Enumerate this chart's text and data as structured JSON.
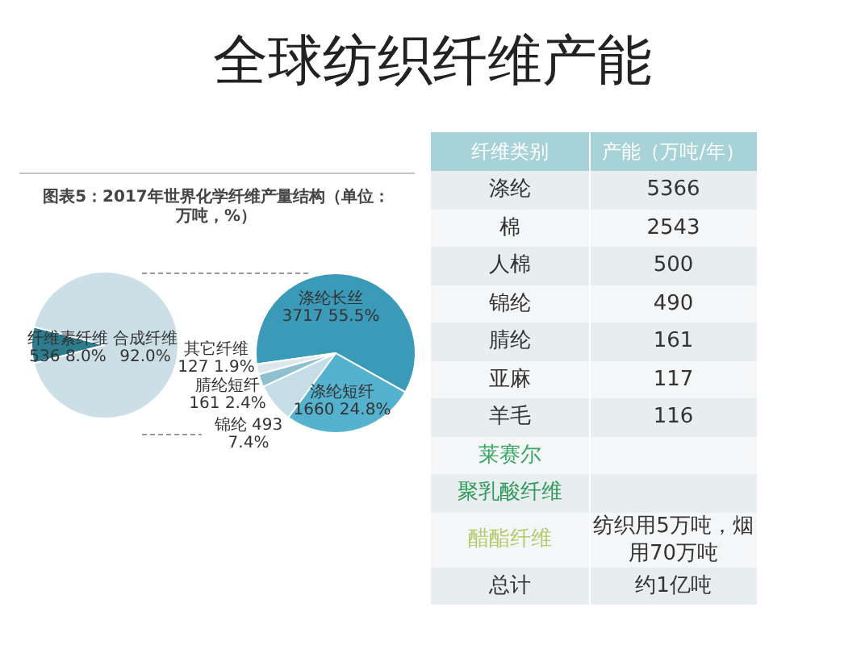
{
  "chart_data": [
    {
      "type": "pie",
      "title": "图表5：2017年世界化学纤维产量结构（单位：万吨，%）",
      "categories": [
        "纤维素纤维",
        "合成纤维"
      ],
      "values": [
        8.0,
        92.0
      ],
      "value_labels": [
        "536 8.0%",
        "92.0%"
      ],
      "colors": [
        "#2d7d8e",
        "#cddfe6"
      ]
    },
    {
      "type": "pie",
      "categories": [
        "涤纶长丝",
        "涤纶短纤",
        "锦纶",
        "腈纶短纤",
        "其它纤维"
      ],
      "values": [
        3717,
        1660,
        493,
        161,
        127
      ],
      "value_labels": [
        "3717 55.5%",
        "1660 24.8%",
        "493 7.4%",
        "161 2.4%",
        "127 1.9%"
      ],
      "colors": [
        "#3b9ab8",
        "#55b2cf",
        "#c4dde6",
        "#8fc0d0",
        "#dde8ec"
      ]
    },
    {
      "type": "other",
      "title": "全球纺织纤维产能",
      "xlabel": "纤维类别",
      "ylabel": "产能（万吨/年）",
      "categories": [
        "涤纶",
        "棉",
        "人棉",
        "锦纶",
        "腈纶",
        "亚麻",
        "羊毛",
        "莱赛尔",
        "聚乳酸纤维",
        "醋酯纤维",
        "总计"
      ],
      "value_labels": [
        "5366",
        "2543",
        "500",
        "490",
        "161",
        "117",
        "116",
        null,
        null,
        "纺织用5万吨，烟用70万吨",
        "约1亿吨"
      ],
      "colors": [
        "#e8edef",
        "#f4f6f7",
        "#e8edef",
        "#f4f6f7",
        "#e8edef",
        "#f4f6f7",
        "#e8edef",
        "#f4f6f7",
        "#e8edef",
        "#f4f6f7",
        "#e8edef"
      ]
    }
  ]
}
